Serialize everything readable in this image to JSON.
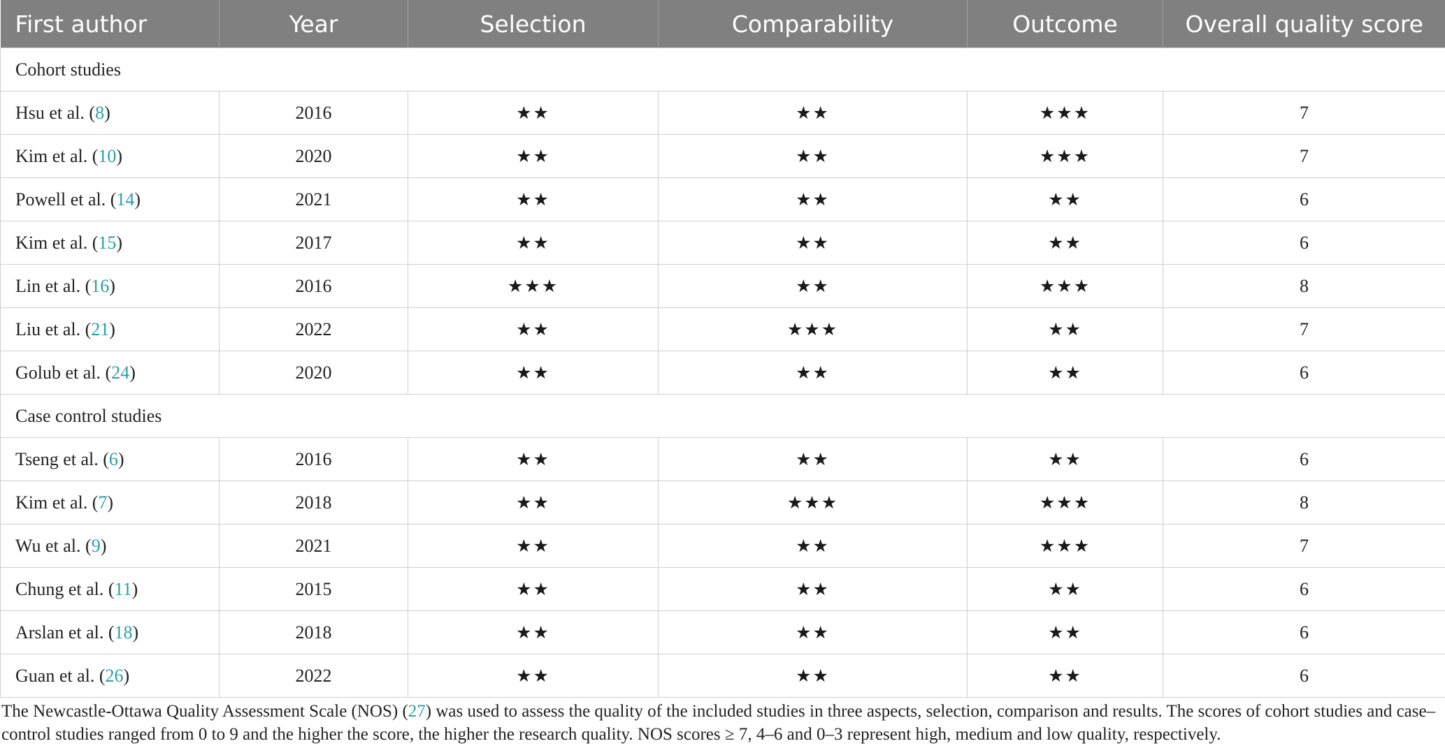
{
  "headers": [
    "First author",
    "Year",
    "Selection",
    "Comparability",
    "Outcome",
    "Overall quality score"
  ],
  "sections": [
    {
      "title": "Cohort studies",
      "rows": [
        {
          "author": "Hsu et al. (",
          "ref": "8",
          "close": ")",
          "year": "2016",
          "selection": "★★",
          "comparability": "★★",
          "outcome": "★★★",
          "score": "7"
        },
        {
          "author": "Kim et al. (",
          "ref": "10",
          "close": ")",
          "year": "2020",
          "selection": "★★",
          "comparability": "★★",
          "outcome": "★★★",
          "score": "7"
        },
        {
          "author": "Powell et al. (",
          "ref": "14",
          "close": ")",
          "year": "2021",
          "selection": "★★",
          "comparability": "★★",
          "outcome": "★★",
          "score": "6"
        },
        {
          "author": "Kim et al. (",
          "ref": "15",
          "close": ")",
          "year": "2017",
          "selection": "★★",
          "comparability": "★★",
          "outcome": "★★",
          "score": "6"
        },
        {
          "author": "Lin et al. (",
          "ref": "16",
          "close": ")",
          "year": "2016",
          "selection": "★★★",
          "comparability": "★★",
          "outcome": "★★★",
          "score": "8"
        },
        {
          "author": "Liu et al. (",
          "ref": "21",
          "close": ")",
          "year": "2022",
          "selection": "★★",
          "comparability": "★★★",
          "outcome": "★★",
          "score": "7"
        },
        {
          "author": "Golub et al. (",
          "ref": "24",
          "close": ")",
          "year": "2020",
          "selection": "★★",
          "comparability": "★★",
          "outcome": "★★",
          "score": "6"
        }
      ]
    },
    {
      "title": "Case control studies",
      "rows": [
        {
          "author": "Tseng et al. (",
          "ref": "6",
          "close": ")",
          "year": "2016",
          "selection": "★★",
          "comparability": "★★",
          "outcome": "★★",
          "score": "6"
        },
        {
          "author": "Kim et al. (",
          "ref": "7",
          "close": ")",
          "year": "2018",
          "selection": "★★",
          "comparability": "★★★",
          "outcome": "★★★",
          "score": "8"
        },
        {
          "author": "Wu et al. (",
          "ref": "9",
          "close": ")",
          "year": "2021",
          "selection": "★★",
          "comparability": "★★",
          "outcome": "★★★",
          "score": "7"
        },
        {
          "author": "Chung et al. (",
          "ref": "11",
          "close": ")",
          "year": "2015",
          "selection": "★★",
          "comparability": "★★",
          "outcome": "★★",
          "score": "6"
        },
        {
          "author": "Arslan et al. (",
          "ref": "18",
          "close": ")",
          "year": "2018",
          "selection": "★★",
          "comparability": "★★",
          "outcome": "★★",
          "score": "6"
        },
        {
          "author": "Guan et al. (",
          "ref": "26",
          "close": ")",
          "year": "2022",
          "selection": "★★",
          "comparability": "★★",
          "outcome": "★★",
          "score": "6"
        }
      ]
    }
  ],
  "footnote": {
    "part1": "The Newcastle-Ottawa Quality Assessment Scale (NOS) (",
    "ref": "27",
    "part2": ") was used to assess the quality of the included studies in three aspects, selection, comparison and results. The scores of cohort studies and case–control studies ranged from 0 to 9 and the higher the score, the higher the research quality. NOS scores ≥ 7, 4–6 and 0–3 represent high, medium and low quality, respectively."
  },
  "colors": {
    "header_bg": "#808080",
    "header_text": "#ffffff",
    "ref_link": "#2a9fa8",
    "grid": "#cfcfcf"
  }
}
